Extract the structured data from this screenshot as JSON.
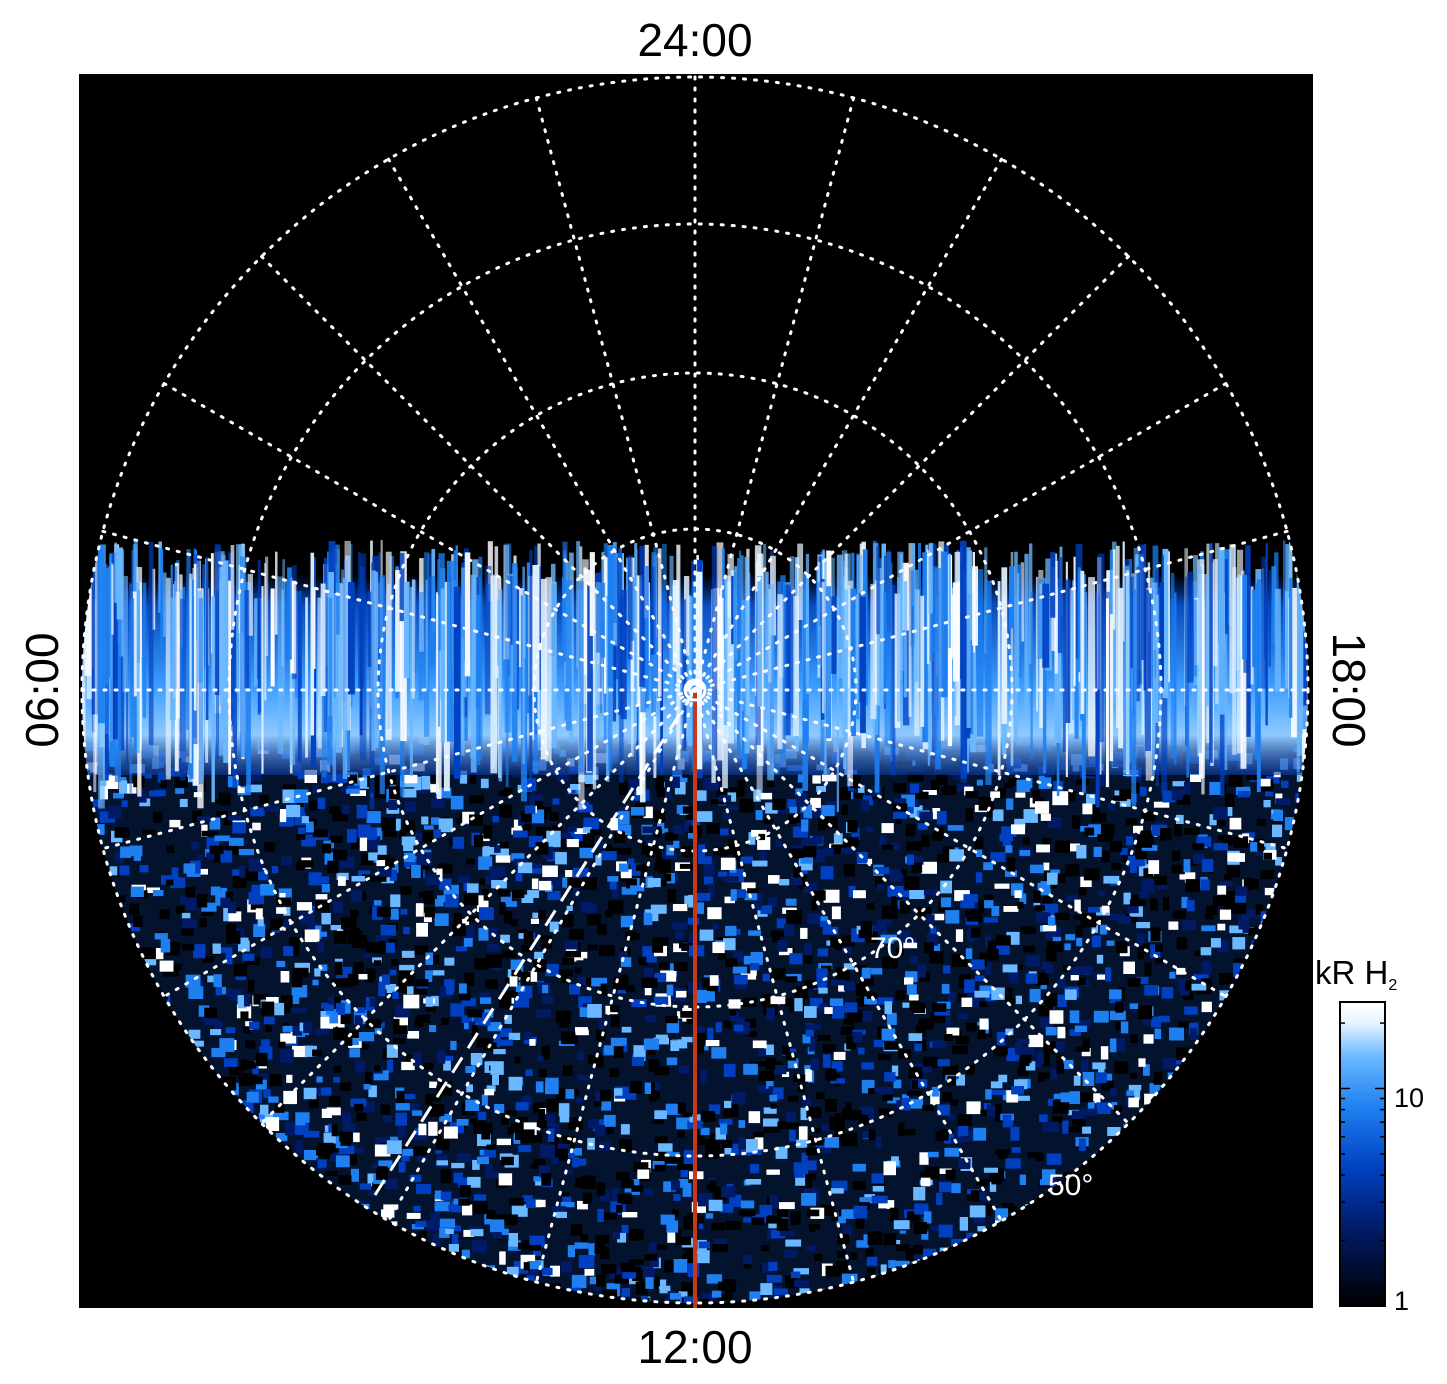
{
  "polar_plot": {
    "label_top": "24:00",
    "label_bottom": "12:00",
    "label_left": "06:00",
    "label_right": "18:00",
    "latitude_labels": [
      "70°",
      "50°"
    ],
    "grid_style": "dotted white",
    "background_color": "#000000",
    "noon_line_color": "#c4391a"
  },
  "colorbar": {
    "title": "kR H",
    "title_subscript": "2",
    "scale": "log",
    "range": [
      1,
      25
    ],
    "tick_labels": [
      "10",
      "1"
    ],
    "colors": [
      "#000000",
      "#001a66",
      "#0040c0",
      "#1e7ff0",
      "#6ab8ff",
      "#e6f4ff",
      "#ffffff"
    ]
  }
}
